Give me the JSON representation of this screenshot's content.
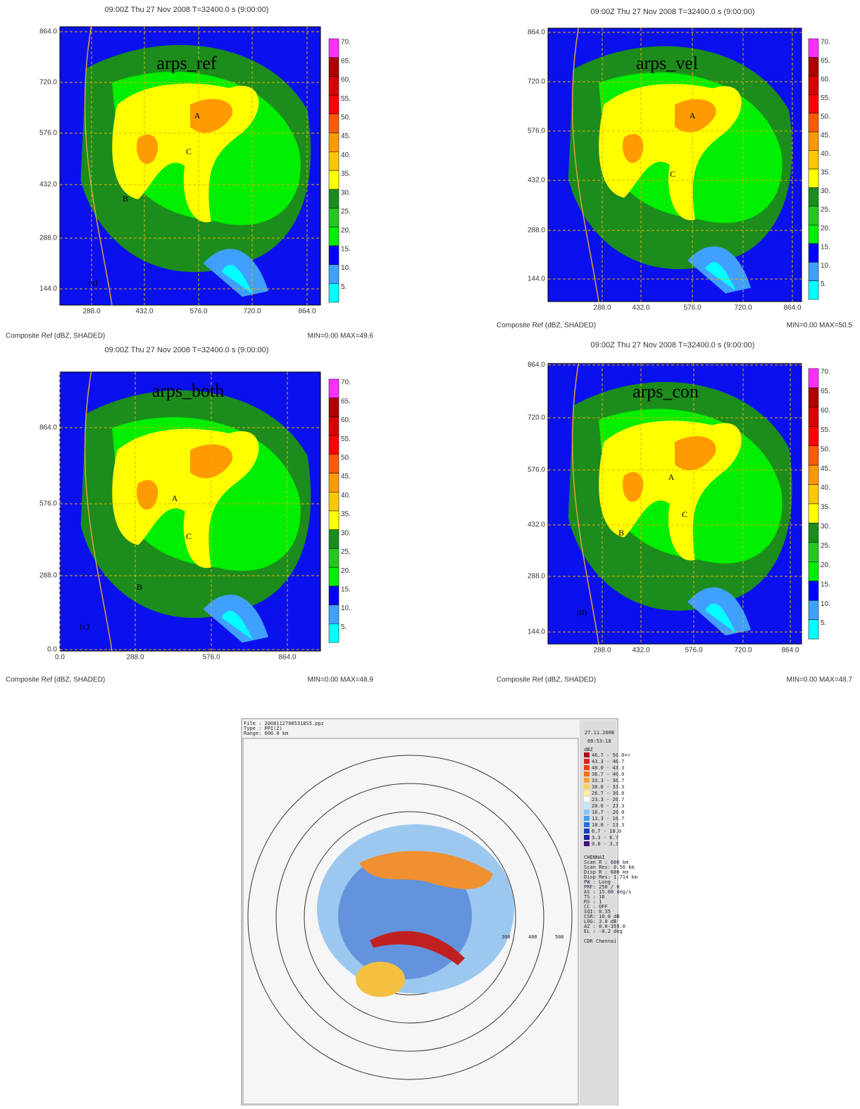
{
  "panels": [
    {
      "header": "09:00Z Thu 27 Nov 2008    T=32400.0 s (9:00:00)",
      "label": "arps_ref",
      "xticks": [
        "288.0",
        "432.0",
        "576.0",
        "720.0",
        "864.0"
      ],
      "yticks": [
        "864.0",
        "720.0",
        "576.0",
        "432.0",
        "288.0",
        "144.0"
      ],
      "footer_left": "Composite Ref (dBZ, SHADED)",
      "footer_right": "MIN=0.00 MAX=49.6",
      "letters": [
        "A",
        "B",
        "C",
        "(a)"
      ]
    },
    {
      "header": "09:00Z Thu 27 Nov 2008    T=32400.0 s (9:00:00)",
      "label": "arps_vel",
      "xticks": [
        "288.0",
        "432.0",
        "576.0",
        "720.0",
        "864.0"
      ],
      "yticks": [
        "864.0",
        "720.0",
        "576.0",
        "432.0",
        "288.0",
        "144.0"
      ],
      "footer_left": "Composite Ref (dBZ, SHADED)",
      "footer_right": "MIN=0.00 MAX=50.5",
      "letters": [
        "A",
        "C"
      ]
    },
    {
      "header": "09:00Z Thu 27 Nov 2008    T=32400.0 s (9:00:00)",
      "label": "arps_both",
      "xticks": [
        "0.0",
        "288.0",
        "576.0",
        "864.0"
      ],
      "yticks": [
        "864.0",
        "576.0",
        "288.0",
        "0.0"
      ],
      "footer_left": "Composite Ref (dBZ, SHADED)",
      "footer_right": "MIN=0.00 MAX=48.9",
      "letters": [
        "A",
        "B",
        "C",
        "(c)"
      ]
    },
    {
      "header": "09:00Z Thu 27 Nov 2008    T=32400.0 s (9:00:00)",
      "label": "arps_con",
      "xticks": [
        "288.0",
        "432.0",
        "576.0",
        "720.0",
        "864.0"
      ],
      "yticks": [
        "864.0",
        "720.0",
        "576.0",
        "432.0",
        "288.0",
        "144.0"
      ],
      "footer_left": "Composite Ref (dBZ, SHADED)",
      "footer_right": "MIN=0.00 MAX=48.7",
      "letters": [
        "A",
        "B",
        "C",
        "(d)"
      ]
    }
  ],
  "colorbar": {
    "labels": [
      "70.",
      "65.",
      "60.",
      "55.",
      "50.",
      "45.",
      "40.",
      "35.",
      "30.",
      "25.",
      "20.",
      "15.",
      "10.",
      "5."
    ],
    "colors": [
      "#ff30ff",
      "#b00000",
      "#d80000",
      "#ff0000",
      "#ff5a00",
      "#ff9a00",
      "#ffc800",
      "#ffff00",
      "#1c8c1c",
      "#22c822",
      "#00ee00",
      "#0000ff",
      "#40a0ff",
      "#00ffff"
    ]
  },
  "radar": {
    "file_lines": [
      "File : 20081127085318S5.ppz",
      "Type : PPI(Z)",
      "Range: 600.0 km"
    ],
    "date": "27.11.2008",
    "time": "08:53:18",
    "unit": "dBZ",
    "legend": [
      "46.7 -  50.0+>",
      "43.3 -  46.7",
      "40.0 -  43.3",
      "36.7 -  40.0",
      "33.3 -  36.7",
      "30.0 -  33.3",
      "26.7 -  30.0",
      "23.3 -  26.7",
      "20.0 -  23.3",
      "16.7 -  20.0",
      "13.3 -  16.7",
      "10.0 -  13.3",
      "6.7 -  10.0",
      "3.3 -   6.7",
      "0.0 -   3.3"
    ],
    "legend_colors": [
      "#b00020",
      "#e02020",
      "#f04010",
      "#ff7010",
      "#ffa030",
      "#ffd060",
      "#fff0a0",
      "#ffffff",
      "#c0e8ff",
      "#80c8ff",
      "#40a0f0",
      "#2070e0",
      "#1040c0",
      "#2020a0",
      "#401080"
    ],
    "info": [
      "CHENNAI",
      "Scan R  : 600 km",
      "Scan Res: 0.50 km",
      "Disp R  : 600 km",
      "Disp Res: 1.714 km",
      "PW : Long",
      "PRF:  250 /  0",
      "AS : 15.00 deg/s",
      "TS : 16",
      "RS : 1",
      "CC : OFF",
      "SQI: 0.35",
      "CSR: 10.0 dB",
      "LOG: 3.0 dB",
      "AZ :    0.0-359.0",
      "EL :   -0.2 deg",
      "",
      "CDR Chennai"
    ],
    "rings": [
      "300",
      "400",
      "500"
    ]
  }
}
